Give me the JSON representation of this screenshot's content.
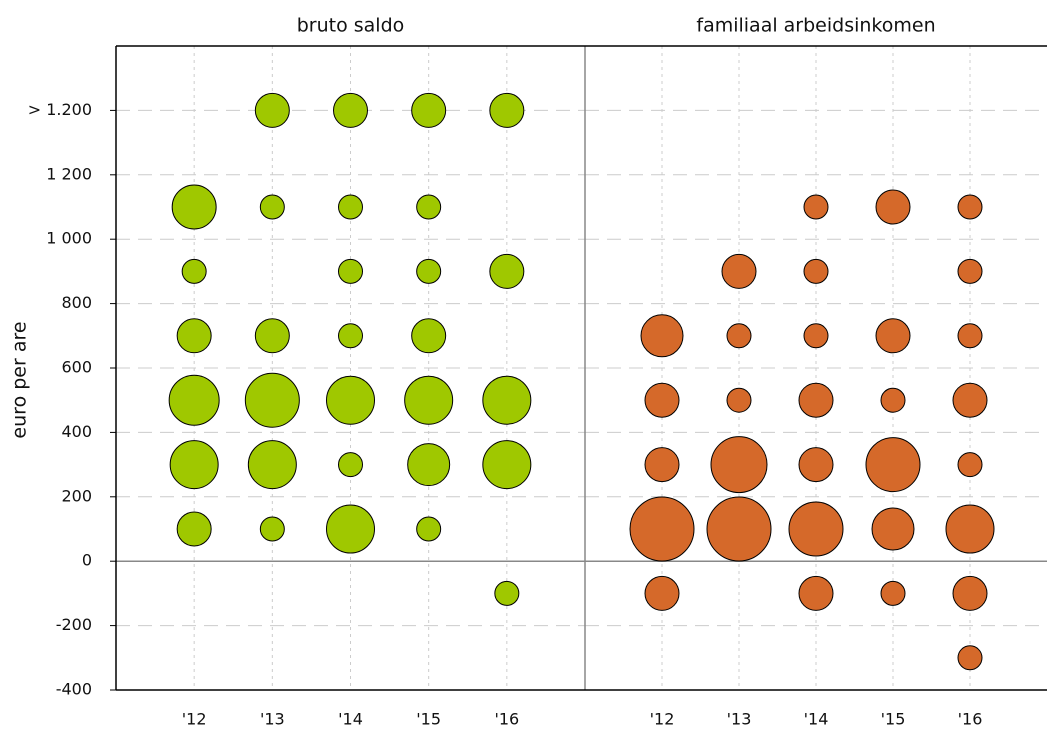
{
  "chart_data": [
    {
      "type": "bubble",
      "title": "bruto saldo",
      "y_label": "euro per are",
      "categories": [
        "'12",
        "'13",
        "'14",
        "'15",
        "'16"
      ],
      "x": [
        "'12",
        "'12",
        "'12",
        "'12",
        "'12",
        "'12",
        "'13",
        "'13",
        "'13",
        "'13",
        "'13",
        "'13",
        "'14",
        "'14",
        "'14",
        "'14",
        "'14",
        "'14",
        "'14",
        "'15",
        "'15",
        "'15",
        "'15",
        "'15",
        "'15",
        "'15",
        "'16",
        "'16",
        "'16",
        "'16",
        "'16"
      ],
      "y": [
        1100,
        900,
        700,
        500,
        300,
        100,
        1400,
        1100,
        700,
        500,
        300,
        100,
        1400,
        1100,
        900,
        700,
        500,
        300,
        100,
        1400,
        1100,
        900,
        700,
        500,
        300,
        100,
        1400,
        900,
        500,
        300,
        -100
      ],
      "sizes": [
        22,
        12,
        17,
        25,
        24,
        17,
        17,
        12,
        17,
        27,
        24,
        12,
        17,
        12,
        12,
        12,
        24,
        12,
        24,
        17,
        12,
        12,
        17,
        24,
        21,
        12,
        17,
        17,
        24,
        24,
        12
      ],
      "color": "#9fc800",
      "ylim": [
        -400,
        1600
      ],
      "yticks": [
        -400,
        -200,
        0,
        200,
        400,
        600,
        800,
        {
          "value": 1000,
          "label": "1 000"
        },
        {
          "value": 1200,
          "label": "1 200"
        },
        {
          "value": 1400,
          "label": "> 1.200"
        }
      ],
      "grid": true
    },
    {
      "type": "bubble",
      "title": "familiaal arbeidsinkomen",
      "categories": [
        "'12",
        "'13",
        "'14",
        "'15",
        "'16"
      ],
      "x": [
        "'12",
        "'12",
        "'12",
        "'12",
        "'12",
        "'13",
        "'13",
        "'13",
        "'13",
        "'13",
        "'14",
        "'14",
        "'14",
        "'14",
        "'14",
        "'14",
        "'14",
        "'15",
        "'15",
        "'15",
        "'15",
        "'15",
        "'15",
        "'16",
        "'16",
        "'16",
        "'16",
        "'16",
        "'16",
        "'16",
        "'16"
      ],
      "y": [
        700,
        500,
        300,
        100,
        -100,
        900,
        700,
        500,
        300,
        100,
        1100,
        900,
        700,
        500,
        300,
        100,
        -100,
        1100,
        700,
        500,
        300,
        100,
        -100,
        1100,
        900,
        700,
        500,
        300,
        100,
        -100,
        -300
      ],
      "sizes": [
        21,
        17,
        17,
        32,
        17,
        17,
        12,
        12,
        28,
        32,
        12,
        12,
        12,
        17,
        17,
        27,
        17,
        17,
        17,
        12,
        27,
        21,
        12,
        12,
        12,
        12,
        17,
        12,
        24,
        17,
        12
      ],
      "color": "#d5692a",
      "ylim": [
        -400,
        1600
      ],
      "grid": true
    }
  ]
}
